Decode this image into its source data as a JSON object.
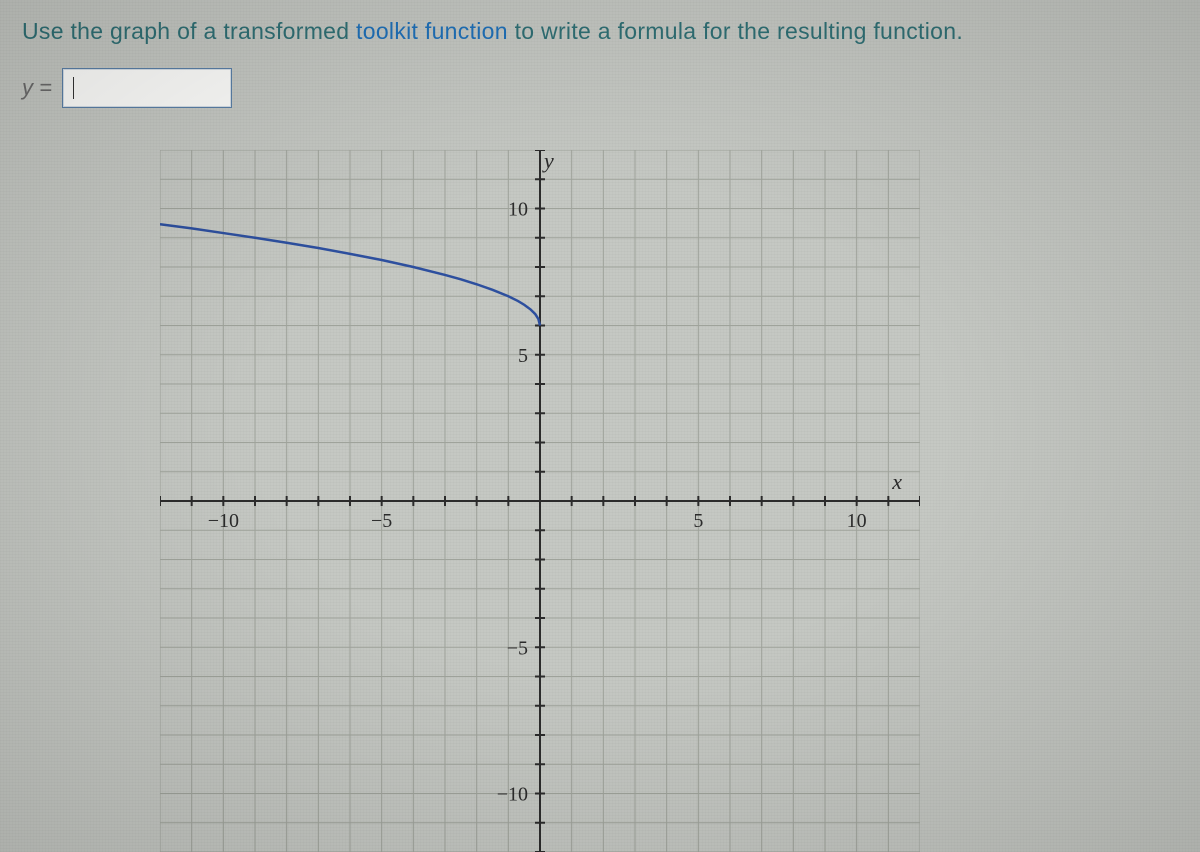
{
  "prompt": {
    "segments": [
      {
        "text": "Use the graph of a transformed ",
        "color": "#2f6f74"
      },
      {
        "text": "toolkit function",
        "color": "#1f70b8"
      },
      {
        "text": " to write a formula for the resulting function.",
        "color": "#2f6f74"
      }
    ],
    "fontsize": 23
  },
  "input": {
    "label": "y =",
    "value": "",
    "placeholder": "",
    "box_border_color": "#5a7fa6",
    "box_bg_color": "#fcfcfa"
  },
  "chart": {
    "type": "line",
    "background_color": "#c5c8c3",
    "grid_color": "#9fa39b",
    "axis_color": "#2b2b2b",
    "curve_color": "#2d4f9e",
    "curve_width": 2.5,
    "xlim": [
      -12,
      12
    ],
    "ylim": [
      -12,
      12
    ],
    "xtick_step": 1,
    "ytick_step": 1,
    "xtick_labels": [
      {
        "value": -10,
        "label": "−10"
      },
      {
        "value": -5,
        "label": "−5"
      },
      {
        "value": 5,
        "label": "5"
      },
      {
        "value": 10,
        "label": "10"
      }
    ],
    "ytick_labels": [
      {
        "value": 10,
        "label": "10"
      },
      {
        "value": 5,
        "label": "5"
      },
      {
        "value": -5,
        "label": "−5"
      },
      {
        "value": -10,
        "label": "−10"
      }
    ],
    "axis_labels": {
      "x": "x",
      "y": "y"
    },
    "tick_label_fontsize": 20,
    "axis_label_fontsize": 22,
    "curve_points": [
      {
        "x": -12,
        "y": 9.46
      },
      {
        "x": -11,
        "y": 9.32
      },
      {
        "x": -10,
        "y": 9.16
      },
      {
        "x": -9,
        "y": 9.0
      },
      {
        "x": -8,
        "y": 8.83
      },
      {
        "x": -7,
        "y": 8.65
      },
      {
        "x": -6,
        "y": 8.45
      },
      {
        "x": -5,
        "y": 8.24
      },
      {
        "x": -4,
        "y": 8.0
      },
      {
        "x": -3,
        "y": 7.73
      },
      {
        "x": -2.5,
        "y": 7.58
      },
      {
        "x": -2,
        "y": 7.41
      },
      {
        "x": -1.5,
        "y": 7.22
      },
      {
        "x": -1,
        "y": 7.0
      },
      {
        "x": -0.7,
        "y": 6.84
      },
      {
        "x": -0.5,
        "y": 6.71
      },
      {
        "x": -0.3,
        "y": 6.55
      },
      {
        "x": -0.15,
        "y": 6.39
      },
      {
        "x": -0.05,
        "y": 6.22
      },
      {
        "x": 0,
        "y": 6.0
      }
    ]
  }
}
